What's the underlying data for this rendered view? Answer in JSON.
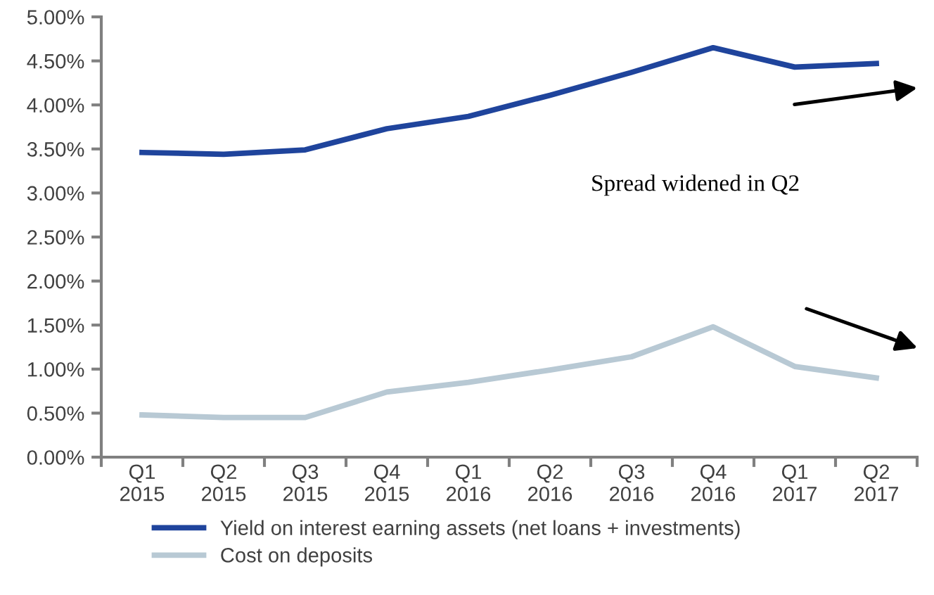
{
  "chart_data": {
    "type": "line",
    "categories": [
      "Q1\n2015",
      "Q2\n2015",
      "Q3\n2015",
      "Q4\n2015",
      "Q1\n2016",
      "Q2\n2016",
      "Q3\n2016",
      "Q4\n2016",
      "Q1\n2017",
      "Q2\n2017"
    ],
    "series": [
      {
        "name": "Yield on interest earning assets (net loans + investments)",
        "color": "#1f449c",
        "values": [
          3.46,
          3.44,
          3.49,
          3.73,
          3.87,
          4.11,
          4.37,
          4.65,
          4.43,
          4.47
        ]
      },
      {
        "name": "Cost on deposits",
        "color": "#b8c9d4",
        "values": [
          0.48,
          0.45,
          0.45,
          0.74,
          0.85,
          0.99,
          1.14,
          1.48,
          1.03,
          0.9
        ]
      }
    ],
    "ylim": [
      0,
      5
    ],
    "yticks": [
      {
        "value": 0,
        "label": "0.00%"
      },
      {
        "value": 0.5,
        "label": "0.50%"
      },
      {
        "value": 1,
        "label": "1.00%"
      },
      {
        "value": 1.5,
        "label": "1.50%"
      },
      {
        "value": 2,
        "label": "2.00%"
      },
      {
        "value": 2.5,
        "label": "2.50%"
      },
      {
        "value": 3,
        "label": "3.00%"
      },
      {
        "value": 3.5,
        "label": "3.50%"
      },
      {
        "value": 4,
        "label": "4.00%"
      },
      {
        "value": 4.5,
        "label": "4.50%"
      },
      {
        "value": 5,
        "label": "5.00%"
      }
    ],
    "annotations": [
      "Spread widened in Q2"
    ],
    "grid": false,
    "legend": "bottom",
    "marker": "none",
    "line_style": "solid"
  }
}
